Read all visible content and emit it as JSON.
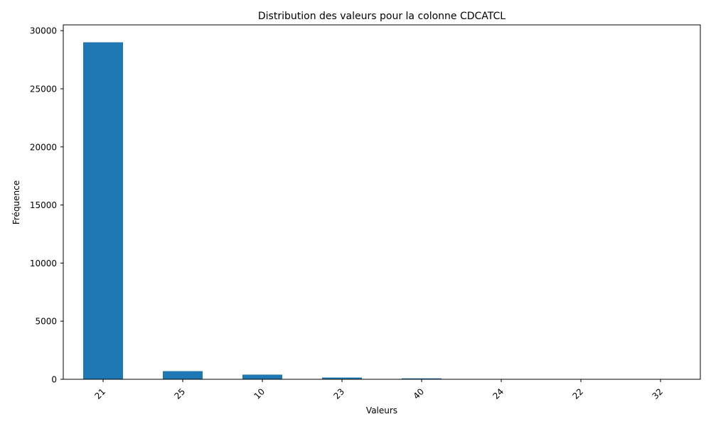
{
  "chart_data": {
    "type": "bar",
    "title": "Distribution des valeurs pour la colonne CDCATCL",
    "xlabel": "Valeurs",
    "ylabel": "Fréquence",
    "categories": [
      "21",
      "25",
      "10",
      "23",
      "40",
      "24",
      "22",
      "32"
    ],
    "values": [
      29000,
      700,
      400,
      150,
      80,
      15,
      8,
      4
    ],
    "ylim": [
      0,
      30500
    ],
    "yticks": [
      0,
      5000,
      10000,
      15000,
      20000,
      25000,
      30000
    ],
    "bar_color": "#1f77b4",
    "grid": false,
    "legend": "none",
    "xtick_rotation": "45 degrees"
  }
}
